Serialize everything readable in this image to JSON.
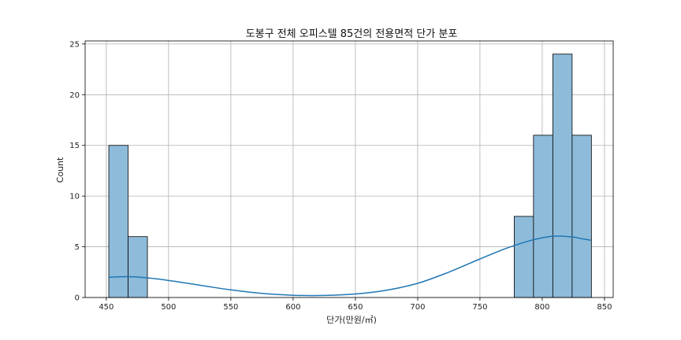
{
  "chart_data": {
    "type": "bar",
    "subtype": "histogram-with-kde",
    "title": "도봉구 전체 오피스텔 85건의 전용면적 단가 분포",
    "xlabel": "단가(만원/㎡)",
    "ylabel": "Count",
    "xlim": [
      433,
      857
    ],
    "ylim": [
      0,
      25.3
    ],
    "xticks": [
      450,
      500,
      550,
      600,
      650,
      700,
      750,
      800,
      850
    ],
    "yticks": [
      0,
      5,
      10,
      15,
      20,
      25
    ],
    "grid": true,
    "bar_color": "#8ebbda",
    "bar_edge_color": "#000000",
    "kde_color": "#1f77b4",
    "bins": [
      {
        "x0": 452,
        "x1": 467.5,
        "count": 15
      },
      {
        "x0": 467.5,
        "x1": 483,
        "count": 6
      },
      {
        "x0": 777.5,
        "x1": 793,
        "count": 8
      },
      {
        "x0": 793,
        "x1": 808.5,
        "count": 16
      },
      {
        "x0": 808.5,
        "x1": 824,
        "count": 24
      },
      {
        "x0": 824,
        "x1": 839.5,
        "count": 16
      }
    ],
    "kde": {
      "x": [
        452,
        470,
        490,
        510,
        530,
        550,
        575,
        600,
        625,
        650,
        675,
        700,
        725,
        750,
        770,
        790,
        805,
        815,
        825,
        832,
        839
      ],
      "y": [
        2.0,
        2.05,
        1.85,
        1.5,
        1.12,
        0.75,
        0.4,
        0.22,
        0.2,
        0.35,
        0.72,
        1.4,
        2.5,
        3.8,
        4.8,
        5.6,
        6.0,
        6.05,
        5.95,
        5.8,
        5.65
      ]
    }
  }
}
